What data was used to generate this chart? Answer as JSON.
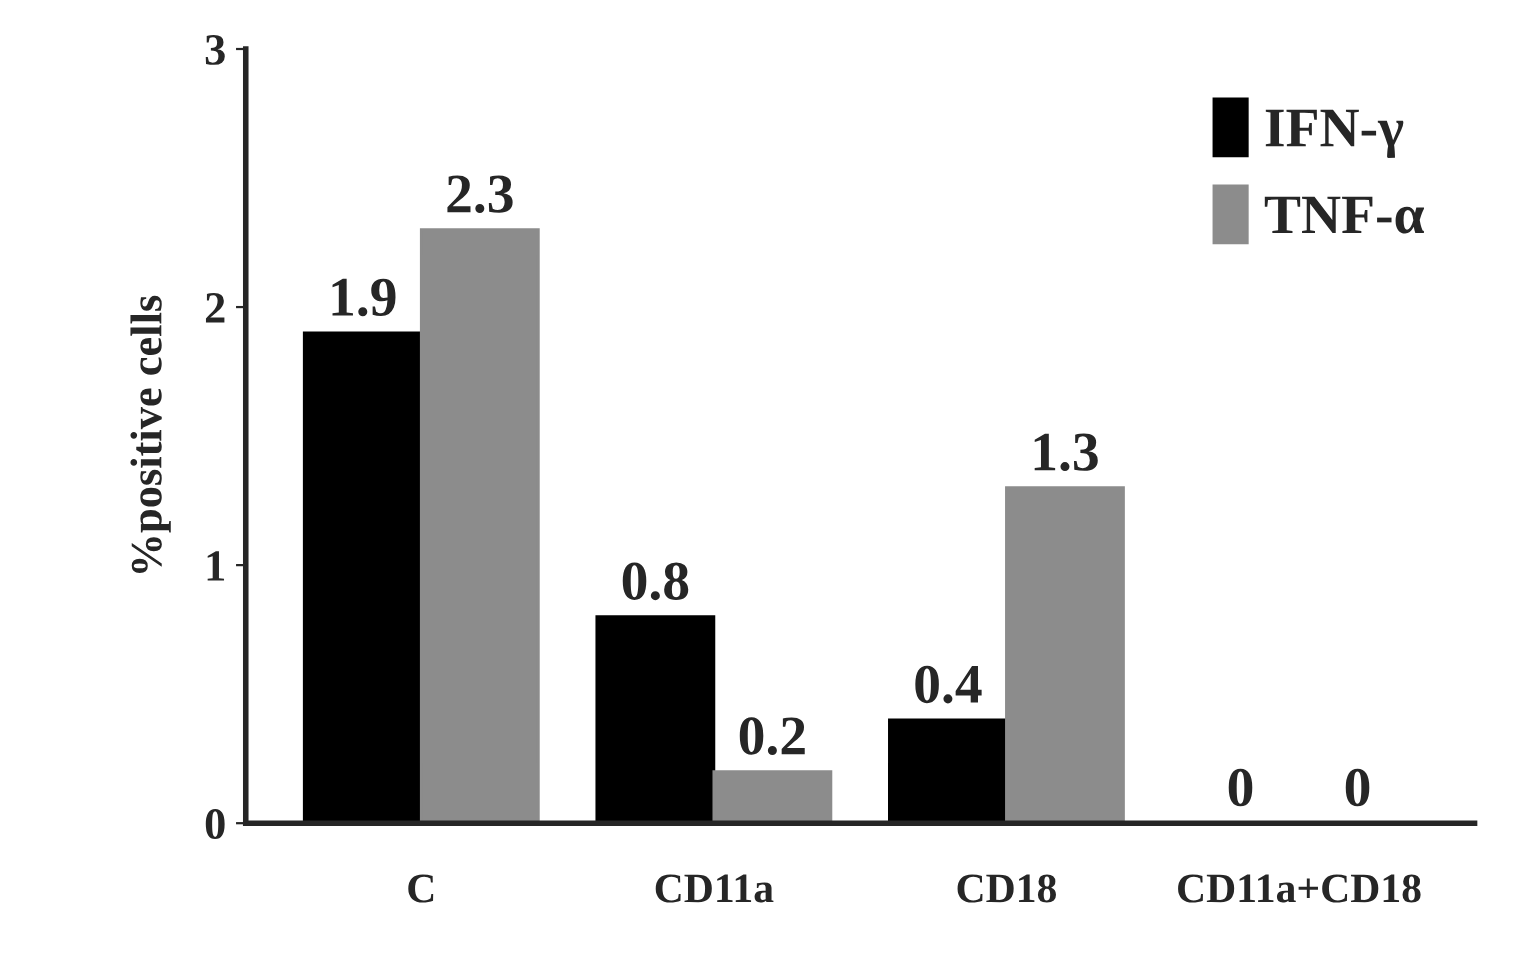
{
  "chart_data": {
    "type": "bar",
    "ylabel": "%positive cells",
    "categories": [
      "C",
      "CD11a",
      "CD18",
      "CD11a+CD18"
    ],
    "series": [
      {
        "name": "IFN-γ",
        "color": "#000000",
        "values": [
          1.9,
          0.8,
          0.4,
          0
        ]
      },
      {
        "name": "TNF-α",
        "color": "#8c8c8c",
        "values": [
          2.3,
          0.2,
          1.3,
          0
        ]
      }
    ],
    "ylim": [
      0,
      3
    ],
    "yticks": [
      0,
      1,
      2,
      3
    ],
    "data_labels": true,
    "legend": "top right",
    "grid": false
  }
}
